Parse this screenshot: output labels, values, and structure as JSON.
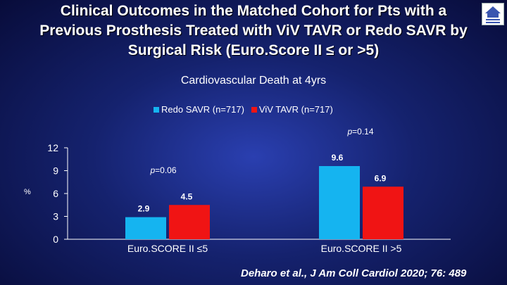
{
  "title_lines": [
    "Clinical Outcomes in the Matched Cohort for Pts with a",
    "Previous Prosthesis Treated with ViV TAVR or Redo SAVR by",
    "Surgical Risk (Euro.Score II ≤ or >5)"
  ],
  "citation": "Deharo et al., J Am Coll Cardiol 2020; 76: 489",
  "chart_data": {
    "type": "bar",
    "title": "Cardiovascular Death at  4yrs",
    "categories": [
      "Euro.SCORE II ≤5",
      "Euro.SCORE II >5"
    ],
    "series": [
      {
        "name": "Redo SAVR (n=717)",
        "values": [
          2.9,
          9.6
        ],
        "color": "#15b4f0"
      },
      {
        "name": "ViV TAVR (n=717)",
        "values": [
          4.5,
          6.9
        ],
        "color": "#f01414"
      }
    ],
    "ylabel": "%",
    "ylim": [
      0,
      12
    ],
    "yticks": [
      "0",
      "3",
      "6",
      "9",
      "12"
    ],
    "p_values": [
      "p=0.06",
      "p=0.14"
    ],
    "legend_position": "top",
    "grid": false
  }
}
